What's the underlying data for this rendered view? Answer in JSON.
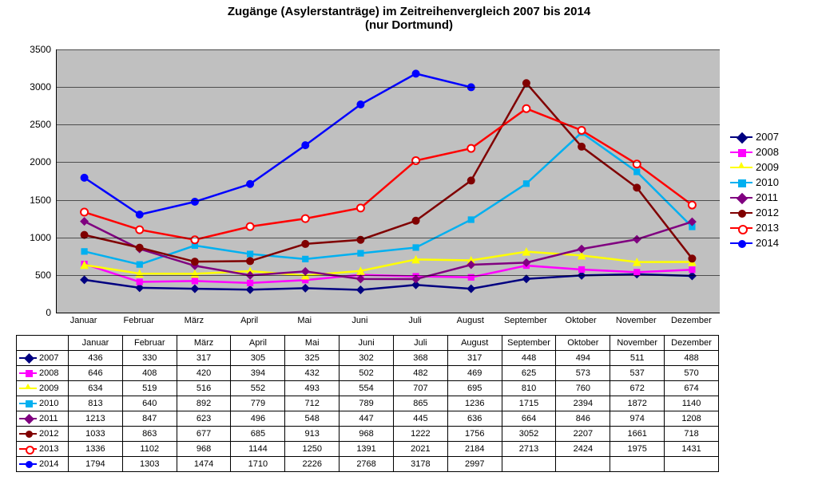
{
  "title": {
    "line1": "Zugänge (Asylerstanträge) im Zeitreihenvergleich 2007 bis 2014",
    "line2": "(nur Dortmund)",
    "fontsize": 15,
    "weight": "bold",
    "color": "#000000"
  },
  "chart": {
    "type": "line",
    "background_color": "#c0c0c0",
    "page_background": "#ffffff",
    "grid_color": "#000000",
    "axis_fontsize": 12,
    "ylim": [
      0,
      3500
    ],
    "ytick_step": 500,
    "yticks": [
      0,
      500,
      1000,
      1500,
      2000,
      2500,
      3000,
      3500
    ],
    "categories": [
      "Januar",
      "Februar",
      "März",
      "April",
      "Mai",
      "Juni",
      "Juli",
      "August",
      "September",
      "Oktober",
      "November",
      "Dezember"
    ],
    "line_width": 2.5,
    "marker_size": 9
  },
  "series": [
    {
      "name": "2007",
      "color": "#000080",
      "marker": "diamond",
      "marker_fill": "#000080",
      "values": [
        436,
        330,
        317,
        305,
        325,
        302,
        368,
        317,
        448,
        494,
        511,
        488
      ]
    },
    {
      "name": "2008",
      "color": "#ff00ff",
      "marker": "square",
      "marker_fill": "#ff00ff",
      "values": [
        646,
        408,
        420,
        394,
        432,
        502,
        482,
        469,
        625,
        573,
        537,
        570
      ]
    },
    {
      "name": "2009",
      "color": "#ffff00",
      "marker": "triangle",
      "marker_fill": "#ffff00",
      "values": [
        634,
        519,
        516,
        552,
        493,
        554,
        707,
        695,
        810,
        760,
        672,
        674
      ]
    },
    {
      "name": "2010",
      "color": "#00b0f0",
      "marker": "square",
      "marker_fill": "#00b0f0",
      "values": [
        813,
        640,
        892,
        779,
        712,
        789,
        865,
        1236,
        1715,
        2394,
        1872,
        1140
      ]
    },
    {
      "name": "2011",
      "color": "#800080",
      "marker": "diamond",
      "marker_fill": "#800080",
      "values": [
        1213,
        847,
        623,
        496,
        548,
        447,
        445,
        636,
        664,
        846,
        974,
        1208
      ]
    },
    {
      "name": "2012",
      "color": "#800000",
      "marker": "circle",
      "marker_fill": "#800000",
      "values": [
        1033,
        863,
        677,
        685,
        913,
        968,
        1222,
        1756,
        3052,
        2207,
        1661,
        718
      ]
    },
    {
      "name": "2013",
      "color": "#ff0000",
      "marker": "circle-open",
      "marker_fill": "#ffffff",
      "values": [
        1336,
        1102,
        968,
        1144,
        1250,
        1391,
        2021,
        2184,
        2713,
        2424,
        1975,
        1431
      ]
    },
    {
      "name": "2014",
      "color": "#0000ff",
      "marker": "circle",
      "marker_fill": "#0000ff",
      "values": [
        1794,
        1303,
        1474,
        1710,
        2226,
        2768,
        3178,
        2997,
        null,
        null,
        null,
        null
      ]
    }
  ],
  "legend": {
    "position": "right",
    "fontsize": 13
  },
  "table": {
    "fontsize": 11,
    "border_color": "#000000"
  }
}
